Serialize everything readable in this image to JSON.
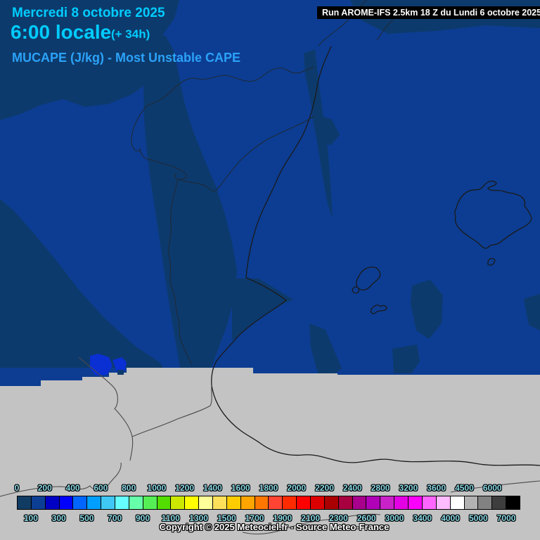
{
  "header": {
    "date": "Mercredi 8 octobre 2025",
    "time": "6:00 locale",
    "offset": "(+ 34h)",
    "param": "MUCAPE (J/kg) - Most Unstable CAPE"
  },
  "run_info": "Run AROME-IFS 2.5km 18 Z du Lundi 6 octobre 2025",
  "copyright": "Copyright © 2025 Meteociel.fr - Source Meteo-France",
  "map_colors": {
    "base_blue": "#0C3D92",
    "dark_blue": "#0D3A6C",
    "vivid_blue": "#0A2FD2",
    "no_data_gray": "#C3C3C3",
    "border_line": "#1A1A1A"
  },
  "legend": {
    "units": "J/kg",
    "cell_colors": [
      "#103C64",
      "#0C3F94",
      "#0000C4",
      "#0000FF",
      "#0066FF",
      "#009FFF",
      "#3FC8F5",
      "#66FFFF",
      "#66FFAA",
      "#55EE55",
      "#53DC00",
      "#CCE800",
      "#FFFF00",
      "#FFFF99",
      "#FFE05A",
      "#FFCC00",
      "#FFA500",
      "#FF7700",
      "#FF4433",
      "#FF2B00",
      "#FF0000",
      "#DD0000",
      "#AA0000",
      "#A80040",
      "#A8008C",
      "#B000B8",
      "#C822C8",
      "#E400E4",
      "#FB00FB",
      "#FF66FF",
      "#FFBBFF",
      "#FFFFFF",
      "#B2B2B2",
      "#828282",
      "#3E3E3E",
      "#000000"
    ],
    "top_labels": [
      {
        "text": "0",
        "k": 0
      },
      {
        "text": "200",
        "k": 2
      },
      {
        "text": "400",
        "k": 4
      },
      {
        "text": "600",
        "k": 6
      },
      {
        "text": "800",
        "k": 8
      },
      {
        "text": "1000",
        "k": 10
      },
      {
        "text": "1200",
        "k": 12
      },
      {
        "text": "1400",
        "k": 14
      },
      {
        "text": "1600",
        "k": 16
      },
      {
        "text": "1800",
        "k": 18
      },
      {
        "text": "2000",
        "k": 20
      },
      {
        "text": "2200",
        "k": 22
      },
      {
        "text": "2400",
        "k": 24
      },
      {
        "text": "2800",
        "k": 26
      },
      {
        "text": "3200",
        "k": 28
      },
      {
        "text": "3600",
        "k": 30
      },
      {
        "text": "4500",
        "k": 32
      },
      {
        "text": "6000",
        "k": 34
      }
    ],
    "bottom_labels": [
      {
        "text": "100",
        "k": 1
      },
      {
        "text": "300",
        "k": 3
      },
      {
        "text": "500",
        "k": 5
      },
      {
        "text": "700",
        "k": 7
      },
      {
        "text": "900",
        "k": 9
      },
      {
        "text": "1100",
        "k": 11
      },
      {
        "text": "1300",
        "k": 13
      },
      {
        "text": "1500",
        "k": 15
      },
      {
        "text": "1700",
        "k": 17
      },
      {
        "text": "1900",
        "k": 19
      },
      {
        "text": "2100",
        "k": 21
      },
      {
        "text": "2300",
        "k": 23
      },
      {
        "text": "2600",
        "k": 25
      },
      {
        "text": "3000",
        "k": 27
      },
      {
        "text": "3400",
        "k": 29
      },
      {
        "text": "4000",
        "k": 31
      },
      {
        "text": "5000",
        "k": 33
      },
      {
        "text": "7000",
        "k": 35
      }
    ]
  }
}
